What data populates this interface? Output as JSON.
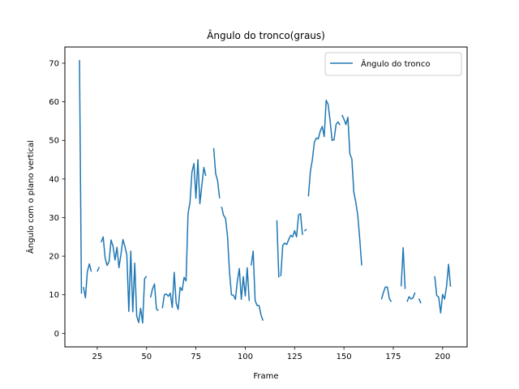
{
  "chart_data": {
    "type": "line",
    "title": "Ângulo do tronco(graus)",
    "xlabel": "Frame",
    "ylabel": "Ângulo com o plano vertical",
    "xlim": [
      8.6,
      212.4
    ],
    "ylim": [
      -3.5,
      74.2
    ],
    "xticks": [
      25,
      50,
      75,
      100,
      125,
      150,
      175,
      200
    ],
    "yticks": [
      0,
      10,
      20,
      30,
      40,
      50,
      60,
      70
    ],
    "grid": false,
    "legend_position": "top-right",
    "colors": {
      "line": "#1f77b4"
    },
    "series": [
      {
        "name": "Ângulo do tronco",
        "segments": [
          [
            [
              16,
              70.8
            ],
            [
              17,
              10.3
            ]
          ],
          [
            [
              18,
              12
            ],
            [
              19,
              9.2
            ],
            [
              20,
              16
            ],
            [
              21,
              18
            ],
            [
              22,
              16
            ]
          ],
          [
            [
              25,
              16
            ],
            [
              26,
              17.2
            ]
          ],
          [
            [
              27,
              23.6
            ],
            [
              28,
              25
            ],
            [
              29,
              19.5
            ],
            [
              30,
              17.6
            ],
            [
              31,
              18.6
            ],
            [
              32,
              24.2
            ],
            [
              33,
              22.6
            ],
            [
              34,
              19
            ],
            [
              35,
              22.3
            ],
            [
              36,
              17
            ],
            [
              37,
              20.4
            ],
            [
              38,
              24.3
            ],
            [
              39,
              22.6
            ],
            [
              40,
              20.3
            ],
            [
              41,
              5.7
            ],
            [
              42,
              21.3
            ],
            [
              43,
              5.6
            ],
            [
              44,
              18.2
            ],
            [
              45,
              4.5
            ],
            [
              46,
              2.8
            ],
            [
              47,
              6.5
            ],
            [
              48,
              2.7
            ],
            [
              49,
              14.2
            ],
            [
              50,
              14.8
            ]
          ],
          [
            [
              52,
              9.3
            ],
            [
              53,
              11.5
            ],
            [
              54,
              12.8
            ],
            [
              55,
              6.3
            ],
            [
              56,
              5.9
            ]
          ],
          [
            [
              58,
              6.5
            ],
            [
              59,
              10
            ],
            [
              60,
              10.2
            ],
            [
              61,
              9.6
            ],
            [
              62,
              10.4
            ],
            [
              63,
              6.7
            ],
            [
              64,
              15.8
            ],
            [
              65,
              7.8
            ],
            [
              66,
              6.2
            ],
            [
              67,
              11.9
            ],
            [
              68,
              11.1
            ],
            [
              69,
              14.5
            ],
            [
              70,
              13.6
            ],
            [
              71,
              31
            ],
            [
              72,
              34
            ],
            [
              73,
              41.8
            ],
            [
              74,
              44
            ],
            [
              75,
              35
            ],
            [
              76,
              45
            ],
            [
              77,
              33.6
            ],
            [
              78,
              38.3
            ],
            [
              79,
              43
            ],
            [
              80,
              40.8
            ]
          ],
          [
            [
              84,
              48
            ],
            [
              85,
              41.4
            ],
            [
              86,
              39.5
            ],
            [
              87,
              35
            ]
          ],
          [
            [
              88,
              32.8
            ],
            [
              89,
              30.6
            ],
            [
              90,
              29.8
            ],
            [
              91,
              25.2
            ],
            [
              92,
              16
            ],
            [
              93,
              10
            ],
            [
              94,
              9.9
            ],
            [
              95,
              8.8
            ],
            [
              96,
              13.6
            ],
            [
              97,
              16.8
            ],
            [
              98,
              8.8
            ],
            [
              99,
              14.7
            ],
            [
              100,
              9.7
            ],
            [
              101,
              17
            ],
            [
              102,
              8.4
            ]
          ],
          [
            [
              103,
              17.6
            ],
            [
              104,
              21.3
            ],
            [
              105,
              8.5
            ],
            [
              106,
              7.2
            ],
            [
              107,
              7.2
            ],
            [
              108,
              4.7
            ],
            [
              109,
              3.3
            ]
          ],
          [
            [
              116,
              29.3
            ],
            [
              117,
              14.5
            ]
          ],
          [
            [
              118,
              14.8
            ],
            [
              119,
              22.8
            ],
            [
              120,
              23.4
            ],
            [
              121,
              23
            ],
            [
              122,
              24.3
            ],
            [
              123,
              25.4
            ],
            [
              124,
              25
            ],
            [
              125,
              26.6
            ],
            [
              126,
              25
            ],
            [
              127,
              30.7
            ],
            [
              128,
              31
            ],
            [
              129,
              25.5
            ]
          ],
          [
            [
              130,
              26.5
            ],
            [
              131,
              27
            ]
          ],
          [
            [
              132,
              35.5
            ],
            [
              133,
              42
            ],
            [
              134,
              45
            ],
            [
              135,
              49.5
            ],
            [
              136,
              50.6
            ],
            [
              137,
              50.4
            ],
            [
              138,
              52.4
            ],
            [
              139,
              53.6
            ],
            [
              140,
              51
            ],
            [
              141,
              60.4
            ],
            [
              142,
              59.3
            ],
            [
              143,
              55
            ],
            [
              144,
              50
            ],
            [
              145,
              50.2
            ],
            [
              146,
              54.1
            ],
            [
              147,
              54.8
            ],
            [
              148,
              54
            ]
          ],
          [
            [
              149,
              56.6
            ],
            [
              150,
              55.5
            ],
            [
              151,
              54.1
            ],
            [
              152,
              56
            ],
            [
              153,
              46.5
            ],
            [
              154,
              45.2
            ],
            [
              155,
              36.6
            ],
            [
              156,
              34
            ],
            [
              157,
              30.6
            ],
            [
              158,
              24.5
            ],
            [
              159,
              17.6
            ]
          ],
          [
            [
              169,
              8.8
            ],
            [
              170,
              10.6
            ],
            [
              171,
              12
            ],
            [
              172,
              12
            ],
            [
              173,
              9
            ],
            [
              174,
              8.2
            ]
          ],
          [
            [
              179,
              12.2
            ],
            [
              180,
              22.2
            ],
            [
              181,
              11.5
            ]
          ],
          [
            [
              182,
              8.2
            ],
            [
              183,
              9.5
            ],
            [
              184,
              8.9
            ],
            [
              185,
              9.2
            ],
            [
              186,
              10.6
            ]
          ],
          [
            [
              188,
              9
            ],
            [
              189,
              7.8
            ]
          ],
          [
            [
              196,
              14.8
            ],
            [
              197,
              9.8
            ],
            [
              198,
              9.4
            ],
            [
              199,
              5.3
            ],
            [
              200,
              10.1
            ],
            [
              201,
              8.9
            ],
            [
              202,
              12.2
            ],
            [
              203,
              17.9
            ],
            [
              204,
              12.1
            ]
          ]
        ]
      }
    ]
  }
}
